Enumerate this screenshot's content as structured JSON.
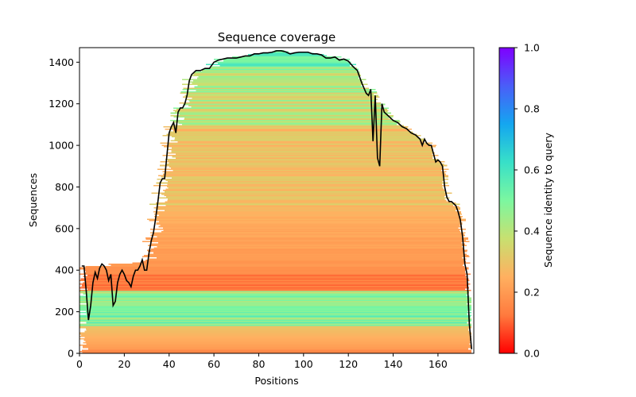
{
  "chart_data": {
    "type": "heatmap",
    "title": "Sequence coverage",
    "xlabel": "Positions",
    "ylabel": "Sequences",
    "xlim": [
      0,
      176
    ],
    "ylim": [
      0,
      1470
    ],
    "x_ticks": [
      0,
      20,
      40,
      60,
      80,
      100,
      120,
      140,
      160
    ],
    "y_ticks": [
      0,
      200,
      400,
      600,
      800,
      1000,
      1200,
      1400
    ],
    "colorbar": {
      "label": "Sequence identity to query",
      "range": [
        0,
        1
      ],
      "ticks": [
        0.0,
        0.2,
        0.4,
        0.6,
        0.8,
        1.0
      ],
      "tick_labels": [
        "0.0",
        "0.2",
        "0.4",
        "0.6",
        "0.8",
        "1.0"
      ],
      "colormap": [
        "#ff0000",
        "#ff7a3e",
        "#ffb060",
        "#c8e070",
        "#7cf7a0",
        "#38e0c8",
        "#14a6f0",
        "#4a5ef8",
        "#7f00ff"
      ]
    },
    "coverage_series": {
      "name": "coverage",
      "color": "#000000",
      "x": [
        1,
        2,
        3,
        4,
        5,
        6,
        7,
        8,
        9,
        10,
        11,
        12,
        13,
        14,
        15,
        16,
        17,
        18,
        19,
        20,
        21,
        22,
        23,
        24,
        25,
        26,
        27,
        28,
        29,
        30,
        31,
        32,
        33,
        34,
        35,
        36,
        37,
        38,
        39,
        40,
        41,
        42,
        43,
        44,
        45,
        46,
        47,
        48,
        49,
        50,
        52,
        54,
        56,
        58,
        60,
        62,
        64,
        66,
        68,
        70,
        72,
        74,
        76,
        78,
        80,
        82,
        84,
        86,
        88,
        90,
        92,
        94,
        96,
        98,
        100,
        102,
        104,
        106,
        108,
        110,
        112,
        114,
        116,
        118,
        120,
        122,
        124,
        126,
        128,
        129,
        130,
        131,
        132,
        133,
        134,
        135,
        136,
        137,
        138,
        139,
        140,
        142,
        144,
        146,
        148,
        150,
        152,
        153,
        154,
        155,
        156,
        157,
        158,
        159,
        160,
        161,
        162,
        163,
        164,
        165,
        166,
        167,
        168,
        169,
        170,
        171,
        172,
        173,
        174,
        175
      ],
      "y": [
        420,
        420,
        300,
        160,
        230,
        340,
        390,
        360,
        410,
        430,
        420,
        400,
        350,
        380,
        230,
        250,
        340,
        380,
        400,
        380,
        350,
        340,
        320,
        370,
        400,
        400,
        420,
        450,
        400,
        400,
        480,
        540,
        580,
        650,
        730,
        820,
        840,
        840,
        950,
        1060,
        1090,
        1110,
        1060,
        1160,
        1180,
        1180,
        1200,
        1240,
        1310,
        1340,
        1360,
        1360,
        1370,
        1370,
        1400,
        1410,
        1415,
        1420,
        1420,
        1420,
        1425,
        1430,
        1430,
        1440,
        1440,
        1445,
        1445,
        1448,
        1455,
        1455,
        1450,
        1440,
        1445,
        1448,
        1448,
        1448,
        1440,
        1440,
        1435,
        1420,
        1420,
        1425,
        1410,
        1415,
        1405,
        1380,
        1360,
        1300,
        1250,
        1240,
        1270,
        1020,
        1240,
        940,
        900,
        1200,
        1160,
        1150,
        1140,
        1130,
        1120,
        1110,
        1090,
        1080,
        1060,
        1050,
        1030,
        1000,
        1030,
        1010,
        1000,
        1000,
        960,
        920,
        930,
        920,
        900,
        800,
        750,
        730,
        730,
        720,
        710,
        680,
        640,
        560,
        430,
        380,
        140,
        20
      ]
    }
  }
}
